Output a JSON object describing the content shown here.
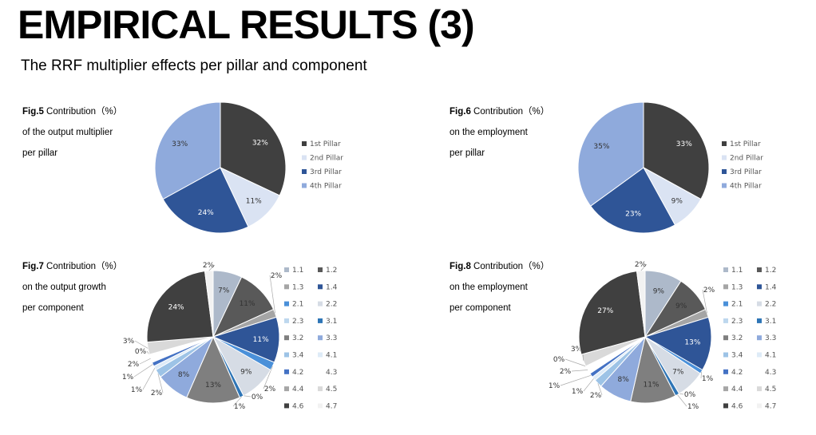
{
  "title": "EMPIRICAL RESULTS (3)",
  "subtitle": "The RRF multiplier effects  per pillar and component",
  "figures": [
    {
      "fig": "Fig.5",
      "caption": [
        " Contribution（%）",
        "of the output multiplier",
        " per pillar"
      ]
    },
    {
      "fig": "Fig.6",
      "caption": [
        " Contribution（%）",
        "on the employment",
        "per pillar"
      ]
    },
    {
      "fig": "Fig.7",
      "caption": [
        " Contribution（%）",
        " on the output growth",
        "per component"
      ]
    },
    {
      "fig": "Fig.8",
      "caption": [
        " Contribution（%）",
        "on the employment",
        "per component"
      ]
    }
  ],
  "chart_data": [
    {
      "type": "pie",
      "title": "Fig.5",
      "categories": [
        "1st Pillar",
        "2nd Pillar",
        "3rd Pillar",
        "4th Pillar"
      ],
      "values": [
        32,
        11,
        24,
        33
      ],
      "colors": [
        "#404040",
        "#dae3f3",
        "#2f5597",
        "#8faadc"
      ]
    },
    {
      "type": "pie",
      "title": "Fig.6",
      "categories": [
        "1st Pillar",
        "2nd Pillar",
        "3rd Pillar",
        "4th Pillar"
      ],
      "values": [
        33,
        9,
        23,
        35
      ],
      "colors": [
        "#404040",
        "#dae3f3",
        "#2f5597",
        "#8faadc"
      ]
    },
    {
      "type": "pie",
      "title": "Fig.7",
      "categories": [
        "1.1",
        "1.2",
        "1.3",
        "1.4",
        "2.1",
        "2.2",
        "2.3",
        "3.1",
        "3.2",
        "3.3",
        "3.4",
        "4.1",
        "4.2",
        "4.3",
        "4.4",
        "4.5",
        "4.6",
        "4.7"
      ],
      "values": [
        7,
        11,
        2,
        11,
        2,
        9,
        0,
        1,
        13,
        8,
        2,
        1,
        1,
        2,
        0,
        3,
        24,
        2
      ]
    },
    {
      "type": "pie",
      "title": "Fig.8",
      "categories": [
        "1.1",
        "1.2",
        "1.3",
        "1.4",
        "2.1",
        "2.2",
        "2.3",
        "3.1",
        "3.2",
        "3.3",
        "3.4",
        "4.1",
        "4.2",
        "4.3",
        "4.4",
        "4.5",
        "4.6",
        "4.7"
      ],
      "values": [
        9,
        9,
        2,
        13,
        1,
        7,
        0,
        1,
        11,
        8,
        2,
        1,
        1,
        2,
        0,
        3,
        27,
        2
      ]
    }
  ],
  "component_colors": [
    "#adb9ca",
    "#595959",
    "#a5a5a5",
    "#2f5597",
    "#4a90d9",
    "#d6dce5",
    "#bdd7ee",
    "#2e75b6",
    "#7f7f7f",
    "#8faadc",
    "#9dc3e6",
    "#deebf7",
    "#4472c4",
    "#ffffff",
    "#a6a6a6",
    "#d9d9d9",
    "#404040",
    "#f2f2f2"
  ]
}
